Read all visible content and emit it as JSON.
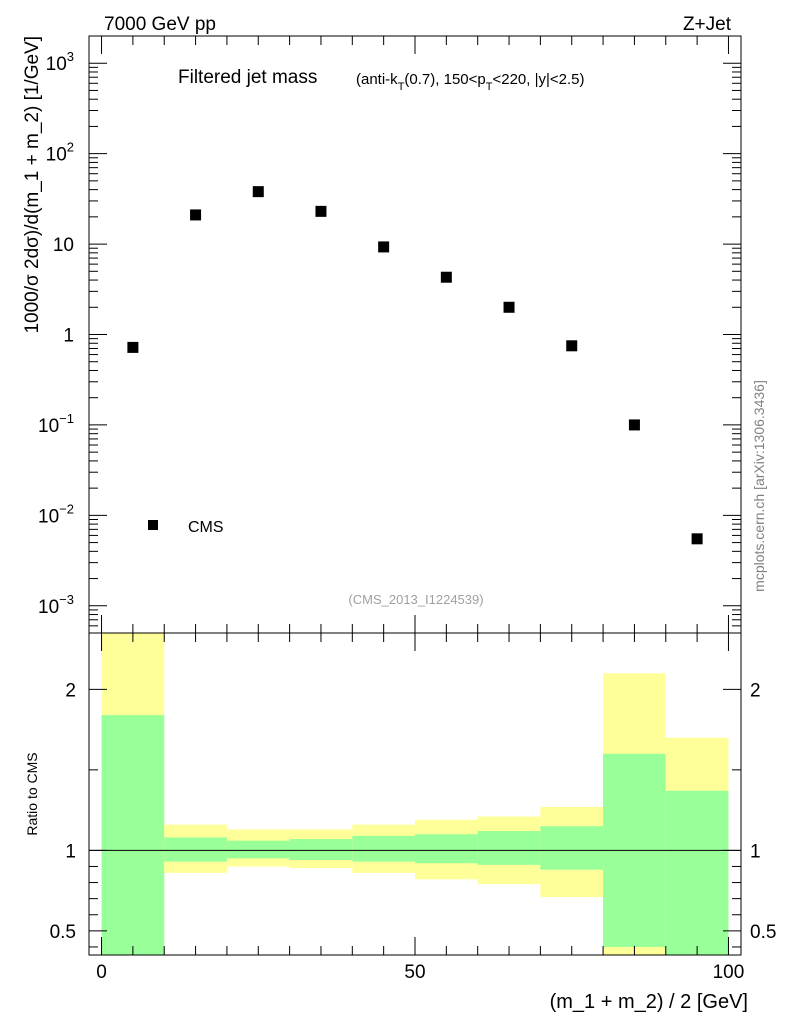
{
  "header": {
    "left": "7000 GeV pp",
    "right": "Z+Jet"
  },
  "side_label": "mcplots.cern.ch [arXiv:1306.3436]",
  "chart_data": [
    {
      "type": "scatter",
      "title_main": "Filtered jet mass",
      "title_detail": {
        "prefix": "(anti-k",
        "sub_T": "T",
        "mid": "(0.7), 150<p",
        "sub_T2": "T",
        "suffix": "<220, |y|<2.5)"
      },
      "ylabel": "1000/σ 2dσ)/d(m_1 + m_2) [1/GeV]",
      "yscale": "log",
      "ylim": [
        0.0005,
        2000
      ],
      "xlim": [
        -2,
        102
      ],
      "y_ticks": [
        {
          "value": 1000,
          "base": "10",
          "exp": "3"
        },
        {
          "value": 100,
          "base": "10",
          "exp": "2"
        },
        {
          "value": 10,
          "base": "10",
          "exp": ""
        },
        {
          "value": 1,
          "base": "1",
          "exp": ""
        },
        {
          "value": 0.1,
          "base": "10",
          "exp": "−1"
        },
        {
          "value": 0.01,
          "base": "10",
          "exp": "−2"
        },
        {
          "value": 0.001,
          "base": "10",
          "exp": "−3"
        }
      ],
      "series": [
        {
          "name": "CMS",
          "x": [
            5,
            15,
            25,
            35,
            45,
            55,
            65,
            75,
            85,
            95
          ],
          "values": [
            0.72,
            21,
            38,
            23,
            9.3,
            4.3,
            2.0,
            0.75,
            0.1,
            0.0055
          ]
        }
      ],
      "legend": {
        "label": "CMS",
        "placement": "bottom-left"
      },
      "watermark": "(CMS_2013_I1224539)"
    },
    {
      "type": "area",
      "ylabel": "Ratio to CMS",
      "xlabel": "(m_1 + m_2) / 2 [GeV]",
      "ylim": [
        0.35,
        2.35
      ],
      "xlim": [
        -2,
        102
      ],
      "x_ticks": [
        0,
        50,
        100
      ],
      "y_ticks": [
        "0.5",
        "1",
        "2"
      ],
      "y_tick_values": [
        0.5,
        1,
        2
      ],
      "reference_line": 1,
      "bins": [
        {
          "lo": 0,
          "hi": 10,
          "green": [
            0.35,
            1.84
          ],
          "yellow": [
            0.35,
            2.4
          ]
        },
        {
          "lo": 10,
          "hi": 20,
          "green": [
            0.93,
            1.08
          ],
          "yellow": [
            0.86,
            1.16
          ]
        },
        {
          "lo": 20,
          "hi": 30,
          "green": [
            0.95,
            1.06
          ],
          "yellow": [
            0.9,
            1.13
          ]
        },
        {
          "lo": 30,
          "hi": 40,
          "green": [
            0.94,
            1.07
          ],
          "yellow": [
            0.89,
            1.13
          ]
        },
        {
          "lo": 40,
          "hi": 50,
          "green": [
            0.93,
            1.09
          ],
          "yellow": [
            0.86,
            1.16
          ]
        },
        {
          "lo": 50,
          "hi": 60,
          "green": [
            0.92,
            1.1
          ],
          "yellow": [
            0.82,
            1.19
          ]
        },
        {
          "lo": 60,
          "hi": 70,
          "green": [
            0.91,
            1.12
          ],
          "yellow": [
            0.79,
            1.21
          ]
        },
        {
          "lo": 70,
          "hi": 80,
          "green": [
            0.88,
            1.15
          ],
          "yellow": [
            0.71,
            1.27
          ]
        },
        {
          "lo": 80,
          "hi": 90,
          "green": [
            0.4,
            1.6
          ],
          "yellow": [
            0.35,
            2.1
          ]
        },
        {
          "lo": 90,
          "hi": 100,
          "green": [
            0.35,
            1.37
          ],
          "yellow": [
            0.35,
            1.7
          ]
        }
      ],
      "colors": {
        "green": "#99ff99",
        "yellow": "#ffff99"
      }
    }
  ]
}
